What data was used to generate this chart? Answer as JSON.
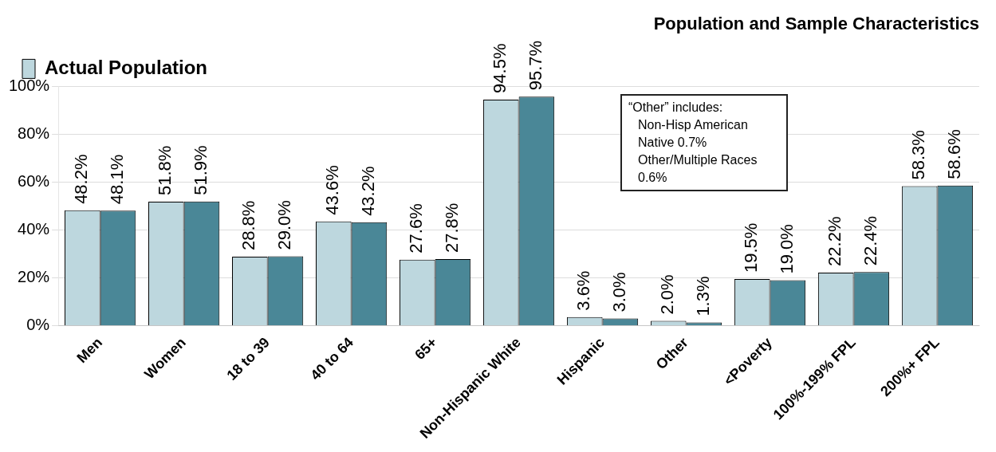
{
  "chart_data": {
    "type": "bar",
    "title": "Population and Sample Characteristics",
    "categories": [
      "Men",
      "Women",
      "18 to 39",
      "40 to 64",
      "65+",
      "Non-Hispanic White",
      "Hispanic",
      "Other",
      "<Poverty",
      "100%-199% FPL",
      "200%+ FPL"
    ],
    "series": [
      {
        "name": "Actual Population",
        "color": "#bdd7de",
        "values": [
          48.2,
          51.8,
          28.8,
          43.6,
          27.6,
          94.5,
          3.6,
          2.0,
          19.5,
          22.2,
          58.3
        ],
        "value_labels": [
          "48.2%",
          "51.8%",
          "28.8%",
          "43.6%",
          "27.6%",
          "94.5%",
          "3.6%",
          "2.0%",
          "19.5%",
          "22.2%",
          "58.3%"
        ]
      },
      {
        "color": "#4a8797",
        "values": [
          48.1,
          51.9,
          29.0,
          43.2,
          27.8,
          95.7,
          3.0,
          1.3,
          19.0,
          22.4,
          58.6
        ],
        "value_labels": [
          "48.1%",
          "51.9%",
          "29.0%",
          "43.2%",
          "27.8%",
          "95.7%",
          "3.0%",
          "1.3%",
          "19.0%",
          "22.4%",
          "58.6%"
        ]
      }
    ],
    "ylim": [
      0,
      100
    ],
    "yticks": [
      {
        "value": 0,
        "label": "0%"
      },
      {
        "value": 20,
        "label": "20%"
      },
      {
        "value": 40,
        "label": "40%"
      },
      {
        "value": 60,
        "label": "60%"
      },
      {
        "value": 80,
        "label": "80%"
      },
      {
        "value": 100,
        "label": "100%"
      }
    ],
    "grid": "y",
    "legend": "top left",
    "annotations": [
      "“Other” includes:",
      "Non-Hisp American Native 0.7%",
      "Other/Multiple Races 0.6%"
    ]
  }
}
